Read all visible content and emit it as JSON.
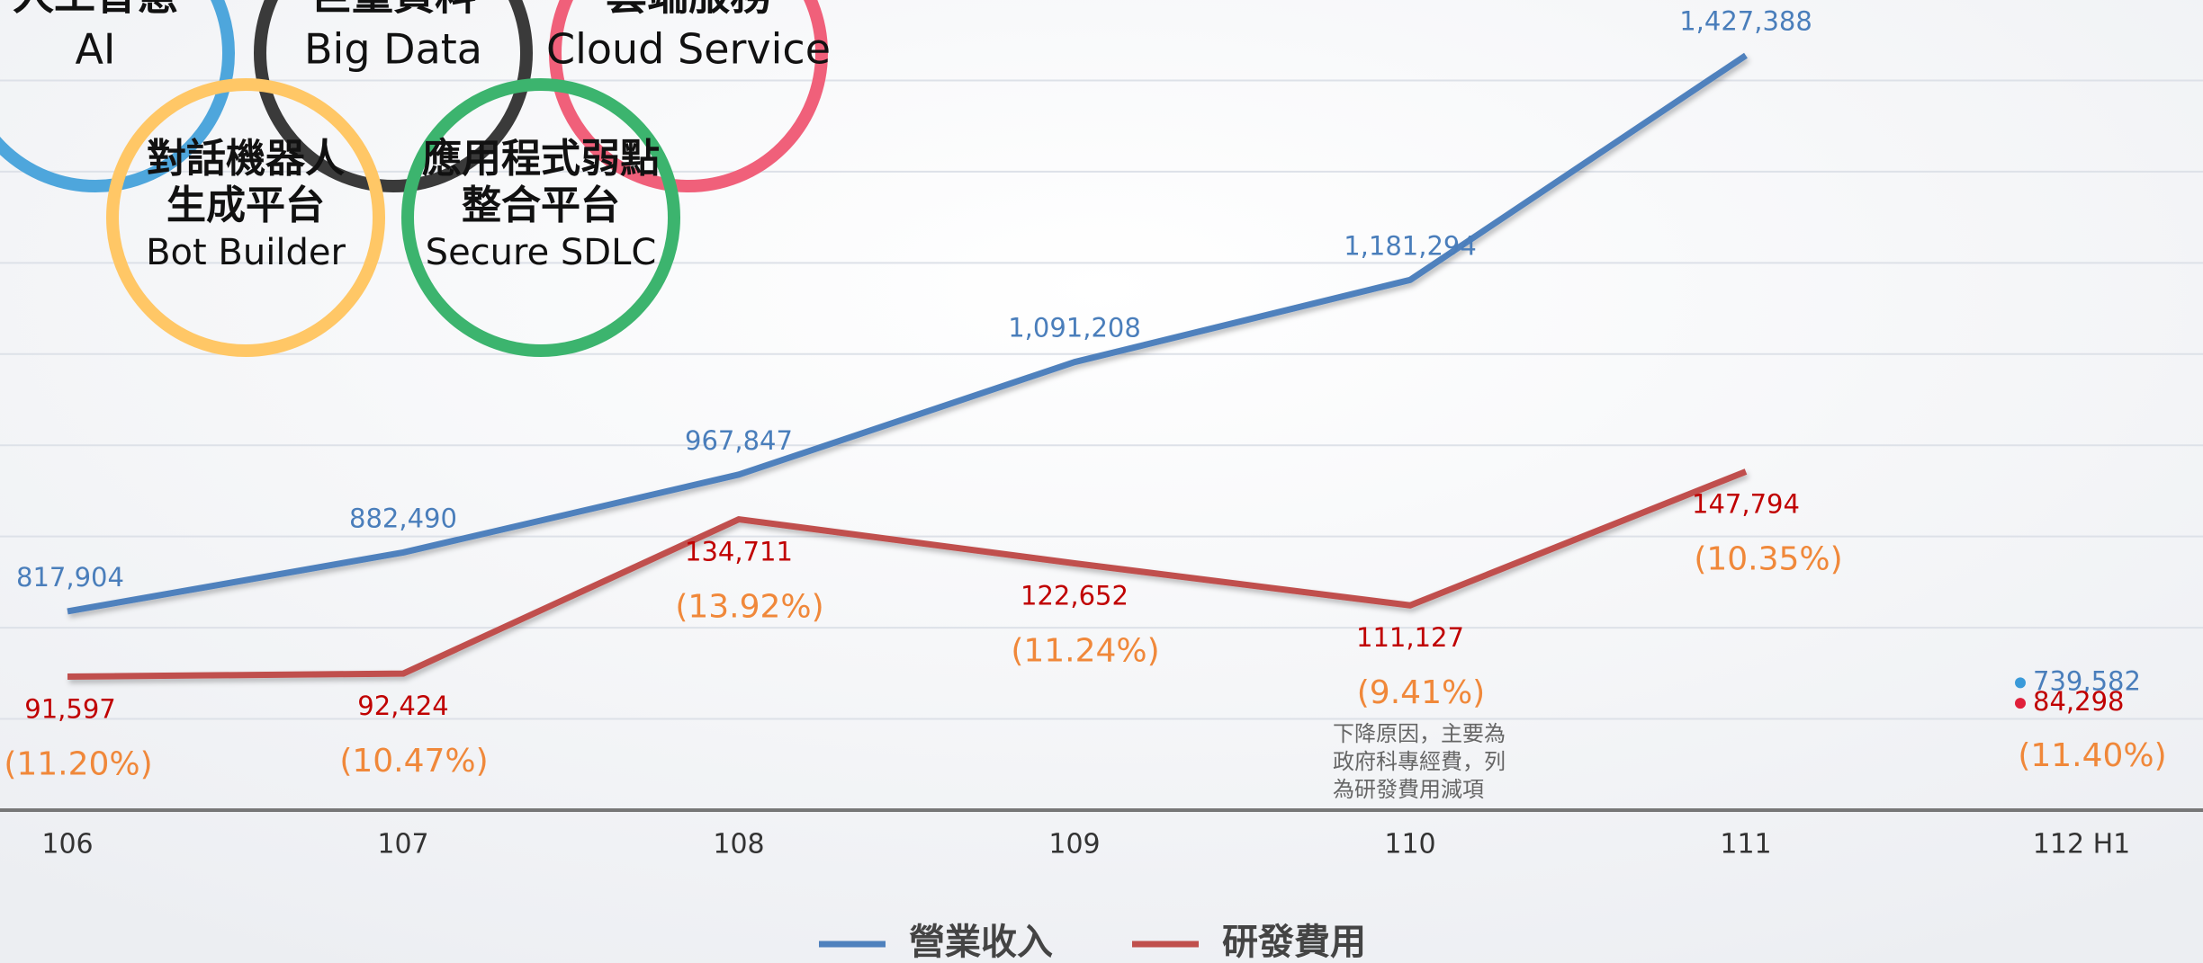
{
  "chart_data": {
    "type": "line",
    "categories": [
      "106",
      "107",
      "108",
      "109",
      "110",
      "111",
      "112 H1"
    ],
    "series": [
      {
        "name": "營業收入",
        "color": "#4f81bd",
        "label_color": "#4a7ebb",
        "values": [
          817904,
          882490,
          967847,
          1091208,
          1181294,
          1427388,
          null
        ],
        "value_labels": [
          "817,904",
          "882,490",
          "967,847",
          "1,091,208",
          "1,181,294",
          "1,427,388",
          null
        ],
        "h1_value": 739582,
        "h1_value_label": "739,582",
        "h1_color": "#3a9ad9"
      },
      {
        "name": "研發費用",
        "color": "#c0504d",
        "label_color": "#c00000",
        "axis": "y2",
        "values": [
          91597,
          92424,
          134711,
          122652,
          111127,
          147794,
          null
        ],
        "value_labels": [
          "91,597",
          "92,424",
          "134,711",
          "122,652",
          "111,127",
          "147,794",
          null
        ],
        "h1_value": 84298,
        "h1_value_label": "84,298",
        "h1_color": "#e0203a"
      }
    ],
    "ratio_labels": [
      "(11.20%)",
      "(10.47%)",
      "(13.92%)",
      "(11.24%)",
      "(9.41%)",
      "(10.35%)",
      "(11.40%)"
    ],
    "ratio_color": "#f0883a",
    "ylim": [
      600000,
      1500000
    ],
    "yticks": [
      600000,
      700000,
      800000,
      900000,
      1000000,
      1100000,
      1200000,
      1300000,
      1400000,
      1500000
    ],
    "y2lim": [
      55000,
      280000
    ],
    "grid": true,
    "annotation": [
      "下降原因，主要為",
      "政府科專經費，列",
      "為研發費用減項"
    ],
    "rings": [
      {
        "lines": [
          "人工智慧",
          "AI"
        ],
        "color": "#4ea6dc"
      },
      {
        "lines": [
          "巨量資料",
          "Big Data"
        ],
        "color": "#3a3a3a"
      },
      {
        "lines": [
          "雲端服務",
          "Cloud Service"
        ],
        "color": "#f0607a"
      },
      {
        "lines": [
          "對話機器人",
          "生成平台",
          "Bot Builder"
        ],
        "color": "#ffc766"
      },
      {
        "lines": [
          "應用程式弱點",
          "整合平台",
          "Secure SDLC"
        ],
        "color": "#3cb46e"
      }
    ]
  }
}
